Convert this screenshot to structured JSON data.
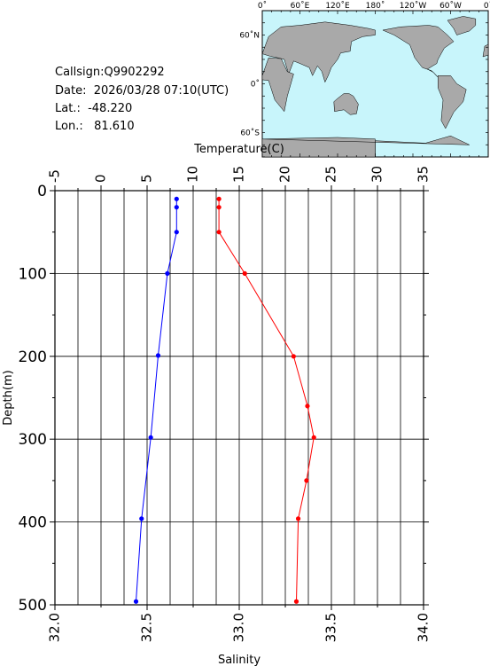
{
  "info": {
    "callsign": "Callsign:Q9902292",
    "date": "Date:  2026/03/28 07:10(UTC)",
    "lat": "Lat.:  -48.220",
    "lon": "Lon.:   81.610"
  },
  "map": {
    "lon_labels": [
      "0˚",
      "60˚E",
      "120˚E",
      "180˚",
      "120˚W",
      "60˚W",
      "0˚"
    ],
    "lat_labels": [
      "60˚N",
      "0˚",
      "60˚S"
    ],
    "ocean_color": "#c8f5fb",
    "land_color": "#a9a9a9",
    "marker_color": "#ff0000"
  },
  "chart_data": {
    "type": "line",
    "top_axis": {
      "label": "Temperature(C)",
      "range": [
        -5,
        35
      ],
      "ticks": [
        "-5",
        "0",
        "5",
        "10",
        "15",
        "20",
        "25",
        "30",
        "35"
      ]
    },
    "bottom_axis": {
      "label": "Salinity",
      "range": [
        32.0,
        34.0
      ],
      "ticks": [
        "32.0",
        "32.5",
        "33.0",
        "33.5",
        "34.0"
      ]
    },
    "y_axis": {
      "label": "Depth(m)",
      "range": [
        0,
        500
      ],
      "reversed": true,
      "ticks": [
        "0",
        "100",
        "200",
        "300",
        "400",
        "500"
      ]
    },
    "grid": true,
    "series": [
      {
        "axis": "temperature",
        "color": "#ff0000",
        "points": [
          {
            "value": 12.8,
            "depth": 10
          },
          {
            "value": 12.8,
            "depth": 20
          },
          {
            "value": 12.8,
            "depth": 50
          },
          {
            "value": 15.6,
            "depth": 100
          },
          {
            "value": 20.9,
            "depth": 200
          },
          {
            "value": 22.4,
            "depth": 260
          },
          {
            "value": 23.1,
            "depth": 298
          },
          {
            "value": 22.3,
            "depth": 350
          },
          {
            "value": 21.4,
            "depth": 396
          },
          {
            "value": 21.2,
            "depth": 496
          }
        ]
      },
      {
        "axis": "salinity",
        "color": "#0000ff",
        "points": [
          {
            "value": 32.66,
            "depth": 10
          },
          {
            "value": 32.66,
            "depth": 20
          },
          {
            "value": 32.66,
            "depth": 50
          },
          {
            "value": 32.61,
            "depth": 100
          },
          {
            "value": 32.56,
            "depth": 199
          },
          {
            "value": 32.52,
            "depth": 298
          },
          {
            "value": 32.47,
            "depth": 396
          },
          {
            "value": 32.44,
            "depth": 496
          }
        ]
      }
    ]
  }
}
